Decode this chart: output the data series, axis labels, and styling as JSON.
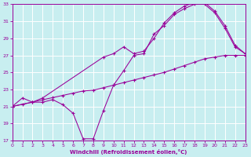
{
  "xlabel": "Windchill (Refroidissement éolien,°C)",
  "bg_color": "#c8eef0",
  "line_color": "#990099",
  "grid_color": "#ffffff",
  "xmin": 0,
  "xmax": 23,
  "ymin": 17,
  "ymax": 33,
  "yticks": [
    17,
    19,
    21,
    23,
    25,
    27,
    29,
    31,
    33
  ],
  "xticks": [
    0,
    1,
    2,
    3,
    4,
    5,
    6,
    7,
    8,
    9,
    10,
    11,
    12,
    13,
    14,
    15,
    16,
    17,
    18,
    19,
    20,
    21,
    22,
    23
  ],
  "curve1_x": [
    0,
    1,
    2,
    3,
    4,
    5,
    6,
    7,
    8,
    9,
    10,
    11,
    12,
    13,
    14,
    15,
    16,
    17,
    18,
    19,
    20,
    21,
    22,
    23
  ],
  "curve1_y": [
    21.0,
    21.26,
    21.52,
    21.78,
    22.04,
    22.3,
    22.56,
    22.82,
    22.9,
    23.2,
    23.5,
    23.8,
    24.1,
    24.4,
    24.7,
    25.0,
    25.4,
    25.8,
    26.2,
    26.6,
    26.8,
    27.0,
    27.0,
    27.0
  ],
  "curve2_x": [
    0,
    1,
    2,
    3,
    4,
    5,
    6,
    7,
    8,
    9,
    10,
    11,
    12,
    13,
    14,
    15,
    16,
    17,
    18,
    19,
    20,
    21,
    22,
    23
  ],
  "curve2_y": [
    21.0,
    22.0,
    21.5,
    21.5,
    21.8,
    21.2,
    20.2,
    17.2,
    17.2,
    20.5,
    23.5,
    25.2,
    27.0,
    27.2,
    29.5,
    30.5,
    31.8,
    32.5,
    33.0,
    33.2,
    32.2,
    30.5,
    28.2,
    27.2
  ],
  "curve3_x": [
    0,
    2,
    3,
    9,
    10,
    11,
    12,
    13,
    14,
    15,
    16,
    17,
    18,
    19,
    20,
    21,
    22,
    23
  ],
  "curve3_y": [
    21.0,
    21.5,
    22.0,
    26.8,
    27.2,
    28.0,
    27.2,
    27.5,
    29.0,
    30.8,
    32.0,
    32.8,
    33.2,
    33.0,
    32.0,
    30.2,
    28.0,
    27.2
  ]
}
